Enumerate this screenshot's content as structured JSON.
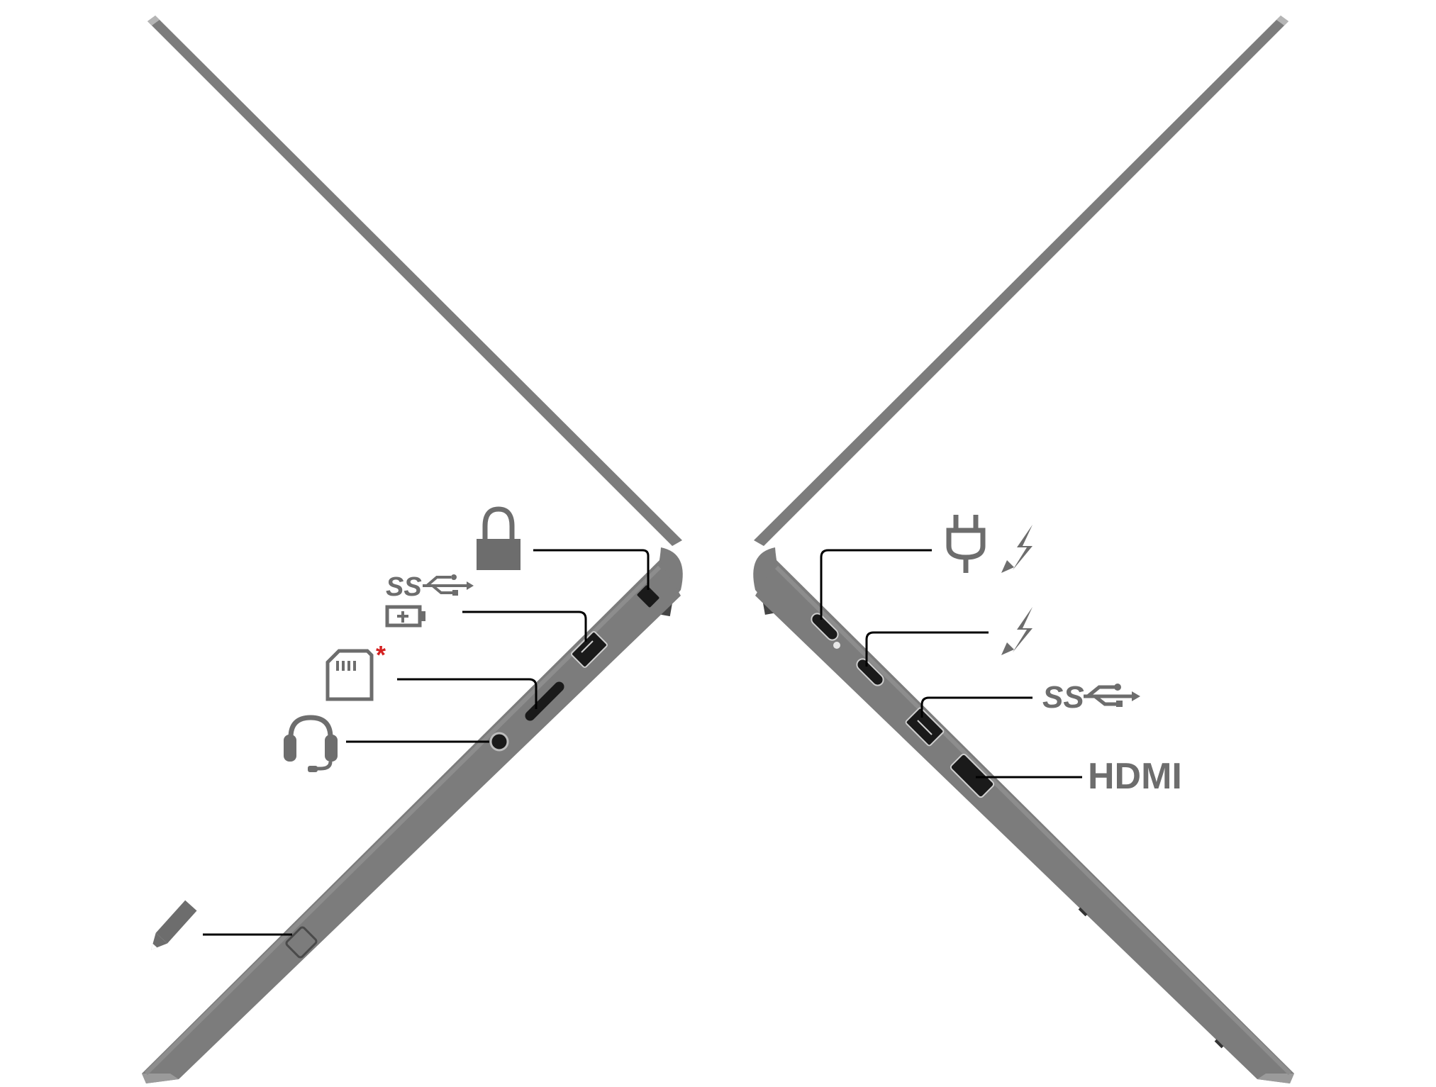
{
  "colors": {
    "chassis": "#7c7c7c",
    "chassis_edge": "#a9a9a9",
    "icon": "#6d6d6d",
    "port": "#1a1a1a",
    "asterisk": "#d42020",
    "leader": "#000000"
  },
  "left_side": {
    "callouts": [
      {
        "name": "security-lock-slot",
        "icon": "lock-icon"
      },
      {
        "name": "usb-3-always-on-port",
        "icon": "usb-ss-charging-icon",
        "text": "SS"
      },
      {
        "name": "microsd-card-slot",
        "icon": "sd-card-icon",
        "marker": "*"
      },
      {
        "name": "audio-combo-jack",
        "icon": "headset-icon"
      },
      {
        "name": "pen-slot",
        "icon": "pen-icon"
      }
    ]
  },
  "right_side": {
    "callouts": [
      {
        "name": "usb-c-power-thunderbolt-port",
        "icon": "power-thunderbolt-icon"
      },
      {
        "name": "usb-c-thunderbolt-port",
        "icon": "thunderbolt-icon"
      },
      {
        "name": "usb-3-port",
        "icon": "usb-ss-icon",
        "text": "SS"
      },
      {
        "name": "hdmi-port",
        "icon": "hdmi-label",
        "text": "HDMI"
      }
    ]
  }
}
